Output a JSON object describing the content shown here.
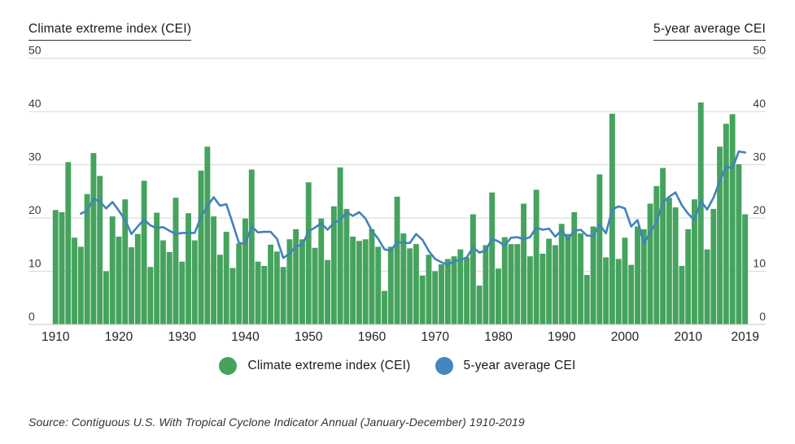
{
  "header": {
    "left_axis_title": "Climate extreme index (CEI)",
    "right_axis_title": "5-year average CEI"
  },
  "axes": {
    "y_ticks": [
      0,
      10,
      20,
      30,
      40,
      50
    ],
    "x_tick_years": [
      1910,
      1920,
      1930,
      1940,
      1950,
      1960,
      1970,
      1980,
      1990,
      2000,
      2010,
      2019
    ]
  },
  "legend": [
    {
      "label": "Climate extreme index (CEI)",
      "swatch": "circle",
      "color": "#45a35d"
    },
    {
      "label": "5-year average CEI",
      "swatch": "circle",
      "color": "#4486be"
    }
  ],
  "source": "Source: Contiguous U.S. With Tropical Cyclone Indicator Annual (January-December) 1910-2019",
  "colors": {
    "bar_green": "#45a35d",
    "line_blue": "#4183bb",
    "gridline": "#d8d8d8",
    "axis_line": "#c9c9c9",
    "tick_label": "#3c3c3c",
    "text": "#1a1a1a",
    "background": "#ffffff"
  },
  "chart_data": {
    "type": "bar",
    "title": "Climate extreme index (CEI)",
    "xlabel": "",
    "ylabel": "Climate extreme index (CEI)",
    "ylabel_right": "5-year average CEI",
    "ylim": [
      0,
      50
    ],
    "grid": "horizontal",
    "legend_position": "bottom",
    "x": [
      1910,
      1911,
      1912,
      1913,
      1914,
      1915,
      1916,
      1917,
      1918,
      1919,
      1920,
      1921,
      1922,
      1923,
      1924,
      1925,
      1926,
      1927,
      1928,
      1929,
      1930,
      1931,
      1932,
      1933,
      1934,
      1935,
      1936,
      1937,
      1938,
      1939,
      1940,
      1941,
      1942,
      1943,
      1944,
      1945,
      1946,
      1947,
      1948,
      1949,
      1950,
      1951,
      1952,
      1953,
      1954,
      1955,
      1956,
      1957,
      1958,
      1959,
      1960,
      1961,
      1962,
      1963,
      1964,
      1965,
      1966,
      1967,
      1968,
      1969,
      1970,
      1971,
      1972,
      1973,
      1974,
      1975,
      1976,
      1977,
      1978,
      1979,
      1980,
      1981,
      1982,
      1983,
      1984,
      1985,
      1986,
      1987,
      1988,
      1989,
      1990,
      1991,
      1992,
      1993,
      1994,
      1995,
      1996,
      1997,
      1998,
      1999,
      2000,
      2001,
      2002,
      2003,
      2004,
      2005,
      2006,
      2007,
      2008,
      2009,
      2010,
      2011,
      2012,
      2013,
      2014,
      2015,
      2016,
      2017,
      2018,
      2019
    ],
    "series": [
      {
        "name": "Climate extreme index (CEI)",
        "type": "bar",
        "color": "#45a35d",
        "values": [
          21.5,
          21.1,
          30.5,
          16.3,
          14.6,
          24.5,
          32.2,
          27.9,
          10.0,
          20.3,
          16.5,
          23.5,
          14.5,
          17.0,
          27.0,
          10.8,
          21.0,
          15.8,
          13.6,
          23.8,
          11.8,
          20.9,
          15.8,
          28.9,
          33.4,
          20.3,
          13.1,
          17.4,
          10.6,
          15.2,
          19.9,
          29.1,
          11.8,
          11.0,
          15.0,
          13.7,
          10.8,
          16.0,
          17.9,
          16.0,
          26.7,
          14.4,
          19.9,
          12.1,
          22.2,
          29.5,
          21.7,
          16.5,
          15.7,
          16.0,
          17.9,
          14.6,
          6.3,
          14.6,
          24.0,
          17.1,
          14.3,
          15.1,
          9.2,
          13.1,
          10.0,
          11.3,
          12.3,
          12.8,
          14.1,
          12.6,
          20.7,
          7.3,
          14.9,
          24.8,
          10.5,
          16.4,
          15.1,
          15.1,
          22.7,
          12.8,
          25.3,
          13.3,
          16.1,
          14.9,
          18.9,
          17.0,
          21.1,
          17.1,
          9.3,
          18.4,
          28.2,
          12.6,
          39.6,
          12.3,
          16.3,
          11.2,
          18.4,
          17.9,
          22.7,
          26.0,
          29.4,
          23.8,
          22.0,
          11.0,
          17.9,
          23.5,
          41.7,
          14.1,
          21.7,
          33.4,
          37.7,
          39.5,
          30.1,
          20.7
        ]
      },
      {
        "name": "5-year average CEI",
        "type": "line",
        "color": "#4183bb",
        "derivation": "trailing 5-year moving average of annual CEI",
        "start_year": 1914,
        "values": [
          20.8,
          21.4,
          23.6,
          23.1,
          21.8,
          23.0,
          21.4,
          19.6,
          17.0,
          18.4,
          19.7,
          18.6,
          18.1,
          18.3,
          17.6,
          17.0,
          17.2,
          17.2,
          17.2,
          20.2,
          22.2,
          23.9,
          22.3,
          22.6,
          19.0,
          15.3,
          15.2,
          18.4,
          17.3,
          17.4,
          17.4,
          16.1,
          12.5,
          13.3,
          14.7,
          14.9,
          17.5,
          18.2,
          19.0,
          17.8,
          19.1,
          19.6,
          21.1,
          20.4,
          21.1,
          19.9,
          17.6,
          16.1,
          14.1,
          13.9,
          15.5,
          15.3,
          15.3,
          17.0,
          15.9,
          13.8,
          12.3,
          11.7,
          11.2,
          11.9,
          12.1,
          12.6,
          14.5,
          13.5,
          13.9,
          16.1,
          15.6,
          14.8,
          16.3,
          16.4,
          16.0,
          16.4,
          18.2,
          17.8,
          18.0,
          16.5,
          17.7,
          16.0,
          17.6,
          17.8,
          16.7,
          16.6,
          18.8,
          17.1,
          21.6,
          22.2,
          21.8,
          18.4,
          19.6,
          15.2,
          17.3,
          19.2,
          22.9,
          24.0,
          24.8,
          22.4,
          20.8,
          19.6,
          23.2,
          21.6,
          23.8,
          26.9,
          29.7,
          29.3,
          32.5,
          32.3
        ]
      }
    ]
  }
}
